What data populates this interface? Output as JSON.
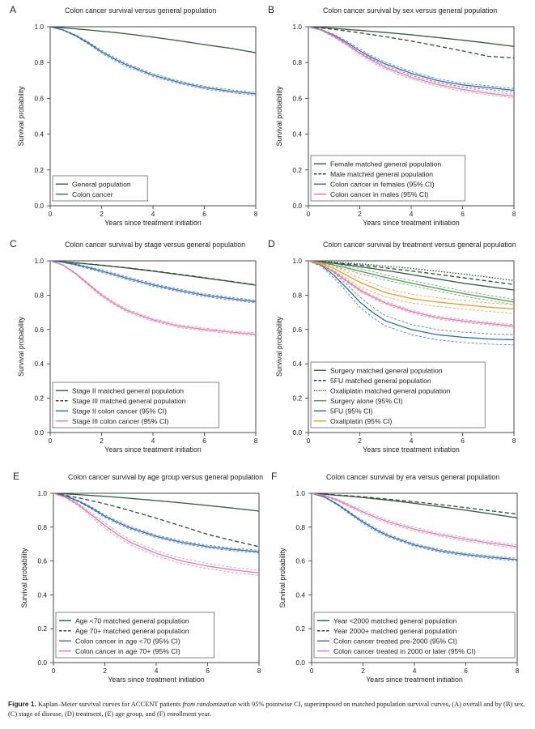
{
  "colors": {
    "pop_solid": "#2e5e3a",
    "pop_dash": "#2e4a36",
    "cancer_blue": "#2f6bb5",
    "cancer_pink": "#e07aaa",
    "cancer_green": "#4f9a55",
    "cancer_orange": "#e99a2c",
    "axis": "#333333",
    "legend_border": "#555555"
  },
  "caption": {
    "figure_label": "Figure 1.",
    "text_before": "Kaplan–Meier survival curves for ACCENT patients",
    "italic": "from randomization",
    "text_after": "with 95% pointwise CI, superimposed on matched population survival curves, (A) overall and by (B) sex, (C) stage of disease, (D) treatment, (E) age group, and (F) enrollment year."
  },
  "chart_data": [
    {
      "panel": "A",
      "type": "line",
      "title": "Colon cancer survival versus general population",
      "xlabel": "Years since treatment initiation",
      "ylabel": "Survival probability",
      "xlim": [
        0,
        8
      ],
      "ylim": [
        0,
        1
      ],
      "xticks": [
        0,
        2,
        4,
        6,
        8
      ],
      "yticks": [
        "0.0",
        "0.2",
        "0.4",
        "0.6",
        "0.8",
        "1.0"
      ],
      "legend_position": "bottom-left",
      "x": [
        0,
        0.5,
        1,
        1.5,
        2,
        2.5,
        3,
        4,
        5,
        6,
        7,
        8
      ],
      "series": [
        {
          "name": "General population",
          "style": "solid",
          "color": "pop_solid",
          "values": [
            1.0,
            0.994,
            0.988,
            0.982,
            0.975,
            0.968,
            0.96,
            0.942,
            0.922,
            0.9,
            0.88,
            0.855
          ]
        },
        {
          "name": "Colon cancer",
          "style": "solid",
          "color": "cancer_blue",
          "ci": 0.008,
          "values": [
            1.0,
            0.982,
            0.95,
            0.908,
            0.86,
            0.82,
            0.785,
            0.73,
            0.69,
            0.66,
            0.64,
            0.625
          ]
        }
      ]
    },
    {
      "panel": "B",
      "type": "line",
      "title": "Colon cancer survival by sex versus general population",
      "xlabel": "Years since treatment initiation",
      "ylabel": "Survival probability",
      "xlim": [
        0,
        8
      ],
      "ylim": [
        0,
        1
      ],
      "xticks": [
        0,
        2,
        4,
        6,
        8
      ],
      "yticks": [
        "0.0",
        "0.2",
        "0.4",
        "0.6",
        "0.8",
        "1.0"
      ],
      "legend_position": "bottom-left",
      "x": [
        0,
        0.5,
        1,
        1.5,
        2,
        2.5,
        3,
        4,
        5,
        6,
        7,
        8
      ],
      "series": [
        {
          "name": "Female matched general population",
          "style": "solid",
          "color": "pop_solid",
          "values": [
            1.0,
            0.996,
            0.991,
            0.985,
            0.98,
            0.974,
            0.968,
            0.955,
            0.94,
            0.925,
            0.908,
            0.89
          ]
        },
        {
          "name": "Male matched general population",
          "style": "dash",
          "color": "pop_dash",
          "values": [
            1.0,
            0.993,
            0.985,
            0.976,
            0.966,
            0.955,
            0.944,
            0.92,
            0.893,
            0.865,
            0.835,
            0.825
          ]
        },
        {
          "name": "Colon cancer in females (95% CI)",
          "style": "solid",
          "color": "cancer_blue",
          "ci": 0.01,
          "values": [
            1.0,
            0.983,
            0.952,
            0.912,
            0.865,
            0.826,
            0.792,
            0.74,
            0.7,
            0.675,
            0.66,
            0.645
          ]
        },
        {
          "name": "Colon cancer in males (95% CI)",
          "style": "solid",
          "color": "cancer_pink",
          "ci": 0.01,
          "values": [
            1.0,
            0.981,
            0.946,
            0.902,
            0.852,
            0.81,
            0.772,
            0.718,
            0.678,
            0.65,
            0.628,
            0.612
          ]
        }
      ]
    },
    {
      "panel": "C",
      "type": "line",
      "title": "Colon cancer survival by stage versus general population",
      "xlabel": "Years since treatment initiation",
      "ylabel": "Survival probability",
      "xlim": [
        0,
        8
      ],
      "ylim": [
        0,
        1
      ],
      "xticks": [
        0,
        2,
        4,
        6,
        8
      ],
      "yticks": [
        "0.0",
        "0.2",
        "0.4",
        "0.6",
        "0.8",
        "1.0"
      ],
      "legend_position": "bottom-left",
      "x": [
        0,
        0.5,
        1,
        1.5,
        2,
        2.5,
        3,
        4,
        5,
        6,
        7,
        8
      ],
      "series": [
        {
          "name": "Stage II matched general population",
          "style": "solid",
          "color": "pop_solid",
          "values": [
            1.0,
            0.994,
            0.988,
            0.981,
            0.974,
            0.966,
            0.958,
            0.94,
            0.92,
            0.9,
            0.88,
            0.858
          ]
        },
        {
          "name": "Stage III matched general population",
          "style": "dash",
          "color": "pop_dash",
          "values": [
            1.0,
            0.994,
            0.988,
            0.982,
            0.975,
            0.967,
            0.959,
            0.942,
            0.922,
            0.902,
            0.881,
            0.86
          ]
        },
        {
          "name": "Stage II colon cancer (95% CI)",
          "style": "solid",
          "color": "cancer_blue",
          "ci": 0.008,
          "values": [
            1.0,
            0.992,
            0.978,
            0.96,
            0.94,
            0.92,
            0.898,
            0.86,
            0.828,
            0.8,
            0.78,
            0.762
          ]
        },
        {
          "name": "Stage III colon cancer (95% CI)",
          "style": "solid",
          "color": "cancer_pink",
          "ci": 0.008,
          "values": [
            1.0,
            0.975,
            0.925,
            0.862,
            0.8,
            0.75,
            0.71,
            0.656,
            0.62,
            0.6,
            0.585,
            0.572
          ]
        }
      ]
    },
    {
      "panel": "D",
      "type": "line",
      "title": "Colon cancer survival by treatment versus general population",
      "xlabel": "Years since treatment initiation",
      "ylabel": "Survival probability",
      "xlim": [
        0,
        8
      ],
      "ylim": [
        0,
        1
      ],
      "xticks": [
        0,
        2,
        4,
        6,
        8
      ],
      "yticks": [
        "0.0",
        "0.2",
        "0.4",
        "0.6",
        "0.8",
        "1.0"
      ],
      "legend_position": "bottom-left",
      "x": [
        0,
        0.5,
        1,
        1.5,
        2,
        2.5,
        3,
        4,
        5,
        6,
        7,
        8
      ],
      "series": [
        {
          "name": "Surgery matched general population",
          "style": "solid",
          "color": "pop_solid",
          "values": [
            1.0,
            0.993,
            0.985,
            0.976,
            0.966,
            0.955,
            0.944,
            0.92,
            0.895,
            0.87,
            0.85,
            0.83
          ]
        },
        {
          "name": "5FU matched general population",
          "style": "dash",
          "color": "pop_dash",
          "values": [
            1.0,
            0.995,
            0.989,
            0.982,
            0.975,
            0.967,
            0.959,
            0.941,
            0.922,
            0.902,
            0.882,
            0.862
          ]
        },
        {
          "name": "Oxaliplatin matched general population",
          "style": "dot",
          "color": "pop_dash",
          "values": [
            1.0,
            0.996,
            0.992,
            0.987,
            0.982,
            0.976,
            0.97,
            0.956,
            0.94,
            0.923,
            0.905,
            0.885
          ]
        },
        {
          "name": "Surgery alone (95% CI)",
          "style": "solid",
          "color": "cancer_green",
          "ci": 0.015,
          "values": [
            1.0,
            0.99,
            0.976,
            0.958,
            0.94,
            0.922,
            0.903,
            0.87,
            0.84,
            0.81,
            0.785,
            0.76
          ]
        },
        {
          "name": "5FU (95% CI)",
          "style": "solid",
          "color": "cancer_blue",
          "ci": 0.03,
          "values": [
            1.0,
            0.975,
            0.915,
            0.84,
            0.76,
            0.7,
            0.65,
            0.6,
            0.57,
            0.555,
            0.545,
            0.54
          ]
        },
        {
          "name": "Oxaliplatin (95% CI)",
          "style": "solid",
          "color": "cancer_orange",
          "ci": 0.025,
          "values": [
            1.0,
            0.985,
            0.955,
            0.915,
            0.875,
            0.845,
            0.815,
            0.78,
            0.76,
            0.745,
            0.73,
            0.72
          ]
        },
        {
          "name": "",
          "style": "solid",
          "color": "cancer_pink",
          "ci": 0.008,
          "values": [
            1.0,
            0.978,
            0.935,
            0.882,
            0.83,
            0.79,
            0.755,
            0.705,
            0.67,
            0.65,
            0.635,
            0.62
          ]
        }
      ]
    },
    {
      "panel": "E",
      "type": "line",
      "title": "Colon cancer survival by age group versus general population",
      "xlabel": "Years since treatment initiation",
      "ylabel": "Survival probability",
      "xlim": [
        0,
        8
      ],
      "ylim": [
        0,
        1
      ],
      "xticks": [
        0,
        2,
        4,
        6,
        8
      ],
      "yticks": [
        "0.0",
        "0.2",
        "0.4",
        "0.6",
        "0.8",
        "1.0"
      ],
      "legend_position": "bottom-left",
      "x": [
        0,
        0.5,
        1,
        1.5,
        2,
        2.5,
        3,
        4,
        5,
        6,
        7,
        8
      ],
      "series": [
        {
          "name": "Age <70 matched general population",
          "style": "solid",
          "color": "pop_solid",
          "values": [
            1.0,
            0.996,
            0.992,
            0.987,
            0.982,
            0.976,
            0.97,
            0.957,
            0.943,
            0.928,
            0.912,
            0.895
          ]
        },
        {
          "name": "Age 70+ matched general population",
          "style": "dash",
          "color": "pop_dash",
          "values": [
            1.0,
            0.987,
            0.972,
            0.956,
            0.938,
            0.918,
            0.897,
            0.853,
            0.806,
            0.757,
            0.72,
            0.685
          ]
        },
        {
          "name": "Colon cancer in age <70 (95% CI)",
          "style": "solid",
          "color": "cancer_blue",
          "ci": 0.008,
          "values": [
            1.0,
            0.983,
            0.952,
            0.912,
            0.865,
            0.828,
            0.795,
            0.746,
            0.71,
            0.685,
            0.668,
            0.655
          ]
        },
        {
          "name": "Colon cancer in age 70+ (95% CI)",
          "style": "solid",
          "color": "cancer_pink",
          "ci": 0.015,
          "values": [
            1.0,
            0.975,
            0.93,
            0.87,
            0.81,
            0.755,
            0.71,
            0.645,
            0.6,
            0.57,
            0.547,
            0.53
          ]
        }
      ]
    },
    {
      "panel": "F",
      "type": "line",
      "title": "Colon cancer survival by era versus general population",
      "xlabel": "Years since treatment initiation",
      "ylabel": "Survival probability",
      "xlim": [
        0,
        8
      ],
      "ylim": [
        0,
        1
      ],
      "xticks": [
        0,
        2,
        4,
        6,
        8
      ],
      "yticks": [
        "0.0",
        "0.2",
        "0.4",
        "0.6",
        "0.8",
        "1.0"
      ],
      "legend_position": "bottom-left",
      "x": [
        0,
        0.5,
        1,
        1.5,
        2,
        2.5,
        3,
        4,
        5,
        6,
        7,
        8
      ],
      "series": [
        {
          "name": "Year <2000 matched general population",
          "style": "solid",
          "color": "pop_solid",
          "values": [
            1.0,
            0.994,
            0.988,
            0.982,
            0.975,
            0.967,
            0.959,
            0.941,
            0.921,
            0.9,
            0.878,
            0.855
          ]
        },
        {
          "name": "Year 2000+ matched general population",
          "style": "dash",
          "color": "pop_dash",
          "values": [
            1.0,
            0.995,
            0.99,
            0.985,
            0.979,
            0.972,
            0.965,
            0.95,
            0.933,
            0.915,
            0.896,
            0.877
          ]
        },
        {
          "name": "Colon cancer treated pre-2000 (95% CI)",
          "style": "solid",
          "color": "cancer_blue",
          "ci": 0.008,
          "values": [
            1.0,
            0.978,
            0.935,
            0.882,
            0.83,
            0.785,
            0.748,
            0.695,
            0.66,
            0.638,
            0.622,
            0.608
          ]
        },
        {
          "name": "Colon cancer treated in 2000 or later (95% CI)",
          "style": "solid",
          "color": "cancer_pink",
          "ci": 0.01,
          "values": [
            1.0,
            0.986,
            0.96,
            0.925,
            0.89,
            0.858,
            0.83,
            0.788,
            0.755,
            0.728,
            0.705,
            0.685
          ]
        }
      ]
    }
  ]
}
